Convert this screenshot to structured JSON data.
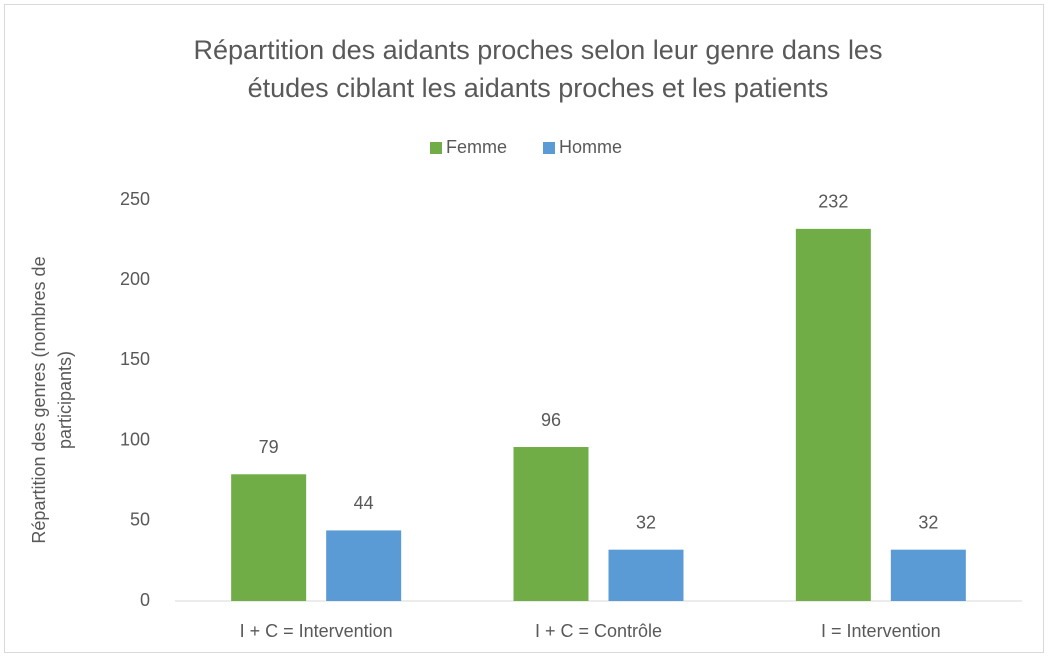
{
  "chart_data": {
    "type": "bar",
    "title": [
      "Répartition des aidants proches selon leur genre dans les",
      "études ciblant les aidants proches et les patients"
    ],
    "y_label": [
      "Répartition des genres (nombres de",
      "participants)"
    ],
    "categories": [
      "I + C = Intervention",
      "I + C = Contrôle",
      "I = Intervention"
    ],
    "series": [
      {
        "name": "Femme",
        "color": "#70ad47",
        "values": [
          79,
          96,
          232
        ]
      },
      {
        "name": "Homme",
        "color": "#5b9bd5",
        "values": [
          44,
          32,
          32
        ]
      }
    ],
    "ylim": [
      0,
      250
    ],
    "yticks": [
      0,
      50,
      100,
      150,
      200,
      250
    ],
    "grid": false,
    "legend": "top"
  }
}
